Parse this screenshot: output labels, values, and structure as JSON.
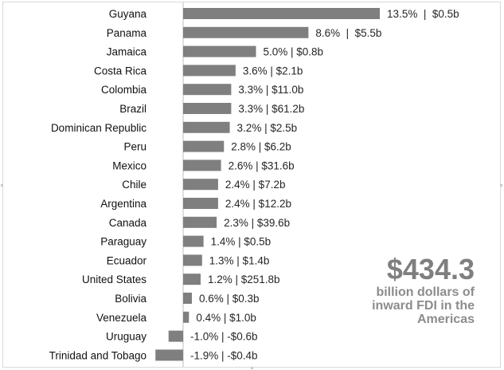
{
  "chart_data": {
    "type": "bar",
    "orientation": "horizontal",
    "categories": [
      "Guyana",
      "Panama",
      "Jamaica",
      "Costa Rica",
      "Colombia",
      "Brazil",
      "Dominican Republic",
      "Peru",
      "Mexico",
      "Chile",
      "Argentina",
      "Canada",
      "Paraguay",
      "Ecuador",
      "United States",
      "Bolivia",
      "Venezuela",
      "Uruguay",
      "Trinidad and Tobago"
    ],
    "series": [
      {
        "values": [
          13.5,
          8.6,
          5.0,
          3.6,
          3.3,
          3.3,
          3.2,
          2.8,
          2.6,
          2.4,
          2.4,
          2.3,
          1.4,
          1.3,
          1.2,
          0.6,
          0.4,
          -1.0,
          -1.9
        ]
      }
    ],
    "data_labels": [
      "13.5%  |  $0.5b",
      "8.6%  |  $5.5b",
      "5.0% | $0.8b",
      "3.6% | $2.1b",
      "3.3% | $11.0b",
      "3.3% | $61.2b",
      "3.2% | $2.5b",
      "2.8% | $6.2b",
      "2.6% | $31.6b",
      "2.4% | $7.2b",
      "2.4% | $12.2b",
      "2.3% | $39.6b",
      "1.4% | $0.5b",
      "1.3% | $1.4b",
      "1.2% | $251.8b",
      "0.6% | $0.3b",
      "0.4% | $1.0b",
      "-1.0% | -$0.6b",
      "-1.9% | -$0.4b"
    ],
    "grid": false,
    "legend": "none",
    "bar_color": "#7f7f7f"
  },
  "callout": {
    "value": "$434.3",
    "text_lines": [
      "billion dollars of",
      "inward FDI in the",
      "Americas"
    ]
  }
}
